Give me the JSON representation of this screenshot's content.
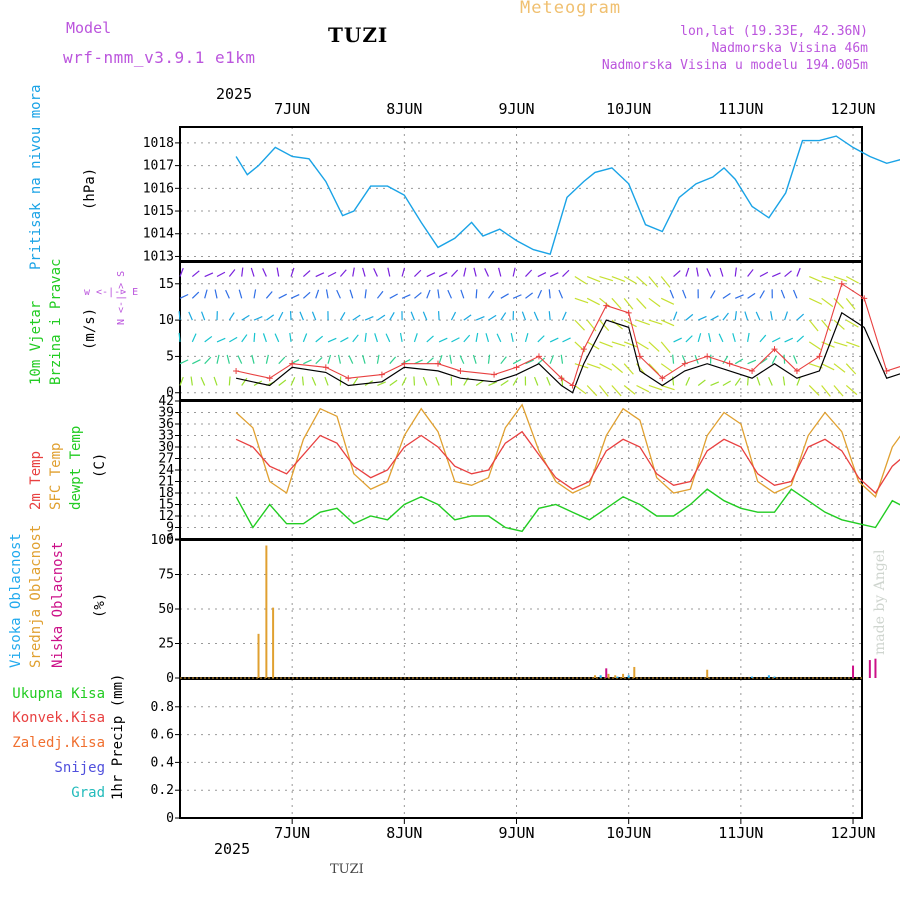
{
  "header": {
    "model_label": "Model",
    "model_name": "wrf-nmm_v3.9.1 e1km",
    "station": "TUZI",
    "meteogram": "Meteogram",
    "lonlat": "lon,lat (19.33E, 42.36N)",
    "elev": "Nadmorska Visina 46m",
    "model_elev": "Nadmorska Visina u modelu 194.005m",
    "year": "2025",
    "footer_station": "TUZI",
    "watermark": "made by Angel"
  },
  "colors": {
    "pressure": "#1aa3e6",
    "temp2m": "#e84040",
    "sfc": "#e0a030",
    "dewpt": "#22cc22",
    "high_cloud": "#22aaee",
    "mid_cloud": "#e0a030",
    "low_cloud": "#cc1088",
    "model": "#bb55dd",
    "meteogram": "#f0c070"
  },
  "chart_data": [
    {
      "type": "line",
      "name": "pressure",
      "ylabel": "Pritisak na nivou mora",
      "unit": "(hPa)",
      "ylim": [
        1012.8,
        1018.7
      ],
      "yticks": [
        1013,
        1014,
        1015,
        1016,
        1017,
        1018
      ],
      "x_ticks": [
        "7JUN",
        "8JUN",
        "9JUN",
        "10JUN",
        "11JUN",
        "12JUN"
      ],
      "grid": true,
      "x_days": [
        0,
        0.1,
        0.2,
        0.35,
        0.5,
        0.65,
        0.8,
        0.95,
        1.05,
        1.2,
        1.35,
        1.5,
        1.65,
        1.8,
        1.95,
        2.1,
        2.2,
        2.35,
        2.5,
        2.65,
        2.8,
        2.95,
        3.1,
        3.2,
        3.35,
        3.5,
        3.65,
        3.8,
        3.95,
        4.1,
        4.25,
        4.35,
        4.45,
        4.6,
        4.75,
        4.9,
        5.05,
        5.2,
        5.35,
        5.5,
        5.65,
        5.8,
        5.95,
        6.05
      ],
      "values": [
        1017.4,
        1016.6,
        1017.0,
        1017.8,
        1017.4,
        1017.3,
        1016.3,
        1014.8,
        1015.0,
        1016.1,
        1016.1,
        1015.7,
        1014.5,
        1013.4,
        1013.8,
        1014.5,
        1013.9,
        1014.2,
        1013.7,
        1013.3,
        1013.1,
        1015.6,
        1016.3,
        1016.7,
        1016.9,
        1016.2,
        1014.4,
        1014.1,
        1015.6,
        1016.2,
        1016.5,
        1016.9,
        1016.4,
        1015.2,
        1014.7,
        1015.8,
        1018.1,
        1018.1,
        1018.3,
        1017.8,
        1017.4,
        1017.1,
        1017.3,
        1017.2
      ]
    },
    {
      "type": "line",
      "name": "wind",
      "ylabel": "10m Vjetar",
      "ylabel2": "Brzina i Pravac",
      "unit": "(m/s)",
      "compass": "w <-|-> E",
      "compass2": "N <-|-> S",
      "ylim": [
        -1,
        18
      ],
      "yticks": [
        0,
        5,
        10,
        15
      ],
      "x_ticks": [
        "7JUN",
        "8JUN",
        "9JUN",
        "10JUN",
        "11JUN",
        "12JUN"
      ],
      "grid": true,
      "x_days": [
        0,
        0.3,
        0.5,
        0.8,
        1.0,
        1.3,
        1.5,
        1.8,
        2.0,
        2.3,
        2.5,
        2.7,
        2.9,
        3.0,
        3.1,
        3.3,
        3.5,
        3.6,
        3.8,
        4.0,
        4.2,
        4.4,
        4.6,
        4.8,
        5.0,
        5.2,
        5.4,
        5.6,
        5.8,
        6.0
      ],
      "series": [
        {
          "name": "speed",
          "values": [
            2,
            1,
            3.5,
            2.8,
            1,
            1.5,
            3.5,
            3,
            2,
            1.5,
            2.5,
            4,
            1,
            0,
            4,
            10,
            9,
            3,
            1,
            3,
            4,
            3,
            2,
            4,
            2,
            3,
            11,
            9,
            2,
            3
          ]
        },
        {
          "name": "gust",
          "values": [
            3,
            2,
            4,
            3.5,
            2,
            2.5,
            4,
            4,
            3,
            2.5,
            3.5,
            5,
            2,
            1,
            6,
            12,
            11,
            5,
            2,
            4,
            5,
            4,
            3,
            6,
            3,
            5,
            15,
            13,
            3,
            4
          ]
        }
      ]
    },
    {
      "type": "line",
      "name": "temperature",
      "ylabel": "2m Temp",
      "ylabel2": "SFC Temp",
      "ylabel3": "dewpt Temp",
      "unit": "(C)",
      "ylim": [
        6,
        42
      ],
      "yticks": [
        6,
        9,
        12,
        15,
        18,
        21,
        24,
        27,
        30,
        33,
        36,
        39,
        42
      ],
      "x_ticks": [
        "7JUN",
        "8JUN",
        "9JUN",
        "10JUN",
        "11JUN",
        "12JUN"
      ],
      "grid": true,
      "x_days": [
        0,
        0.15,
        0.3,
        0.45,
        0.6,
        0.75,
        0.9,
        1.05,
        1.2,
        1.35,
        1.5,
        1.65,
        1.8,
        1.95,
        2.1,
        2.25,
        2.4,
        2.55,
        2.7,
        2.85,
        3.0,
        3.15,
        3.3,
        3.45,
        3.6,
        3.75,
        3.9,
        4.05,
        4.2,
        4.35,
        4.5,
        4.65,
        4.8,
        4.95,
        5.1,
        5.25,
        5.4,
        5.55,
        5.7,
        5.85,
        6.05
      ],
      "series": [
        {
          "name": "2m Temp",
          "values": [
            32,
            30,
            25,
            23,
            28,
            33,
            31,
            25,
            22,
            24,
            30,
            33,
            30,
            25,
            23,
            24,
            31,
            34,
            28,
            22,
            19,
            21,
            29,
            32,
            30,
            23,
            20,
            21,
            29,
            32,
            30,
            23,
            20,
            21,
            30,
            32,
            29,
            22,
            18,
            25,
            30
          ]
        },
        {
          "name": "SFC Temp",
          "values": [
            39,
            35,
            21,
            18,
            32,
            40,
            38,
            23,
            19,
            21,
            33,
            40,
            34,
            21,
            20,
            22,
            35,
            41,
            29,
            21,
            18,
            20,
            33,
            40,
            37,
            22,
            18,
            19,
            33,
            39,
            36,
            21,
            18,
            20,
            33,
            39,
            34,
            21,
            17,
            30,
            38
          ]
        },
        {
          "name": "dewpt Temp",
          "values": [
            17,
            9,
            15,
            10,
            10,
            13,
            14,
            10,
            12,
            11,
            15,
            17,
            15,
            11,
            12,
            12,
            9,
            8,
            14,
            15,
            13,
            11,
            14,
            17,
            15,
            12,
            12,
            15,
            19,
            16,
            14,
            13,
            13,
            19,
            16,
            13,
            11,
            10,
            9,
            16,
            13
          ]
        }
      ]
    },
    {
      "type": "bar",
      "name": "cloud",
      "ylabel": "Visoka Oblacnost",
      "ylabel2": "Srednja Oblacnost",
      "ylabel3": "Niska Oblacnost",
      "unit": "(%)",
      "ylim": [
        0,
        100
      ],
      "yticks": [
        0,
        25,
        50,
        75,
        100
      ],
      "x_ticks": [
        "7JUN",
        "8JUN",
        "9JUN",
        "10JUN",
        "11JUN",
        "12JUN"
      ],
      "grid": true,
      "series": [
        {
          "name": "Srednja Oblacnost",
          "x_days": [
            0.2,
            0.27,
            0.33,
            3.2,
            3.32,
            3.38,
            3.45,
            3.55,
            4.2
          ],
          "values": [
            32,
            96,
            51,
            2,
            3,
            2,
            3,
            8,
            6
          ]
        },
        {
          "name": "Visoka Oblacnost",
          "x_days": [
            3.25,
            3.4,
            3.5,
            4.6,
            4.75,
            4.8
          ],
          "values": [
            2,
            1,
            2,
            1,
            2,
            1
          ]
        },
        {
          "name": "Niska Oblacnost",
          "x_days": [
            3.3,
            5.5,
            5.65,
            5.7
          ],
          "values": [
            7,
            9,
            13,
            14
          ]
        }
      ]
    },
    {
      "type": "bar",
      "name": "precip",
      "ylabel": "1hr Precip (mm)",
      "legend": [
        "Ukupna Kisa",
        "Konvek.Kisa",
        "Zaledj.Kisa",
        "Snijeg",
        "Grad"
      ],
      "ylim": [
        0,
        1
      ],
      "yticks": [
        0,
        0.2,
        0.4,
        0.6,
        0.8
      ],
      "ytick_labels": [
        "0",
        "0.2",
        "0.4",
        "0.6",
        "0.8"
      ],
      "x_ticks": [
        "7JUN",
        "8JUN",
        "9JUN",
        "10JUN",
        "11JUN",
        "12JUN"
      ],
      "grid": true,
      "values": []
    }
  ]
}
